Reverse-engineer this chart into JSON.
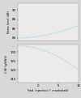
{
  "noise_ylim": [
    83.5,
    91.5
  ],
  "cse_ylim": [
    313,
    334
  ],
  "noise_yticks": [
    84,
    86,
    88,
    90
  ],
  "cse_yticks": [
    315,
    320,
    325,
    330
  ],
  "xlim": [
    -5,
    10
  ],
  "xticks": [
    0,
    5,
    10
  ],
  "xlabel": "Fwd. injection (° crankshaft)",
  "ylabel_top": "Noise level (dB)",
  "ylabel_bottom": "CSE (g/kWh)",
  "line_color": "#6dd5e8",
  "bg_color": "#d8d8d8",
  "plot_bg": "#ebebeb"
}
